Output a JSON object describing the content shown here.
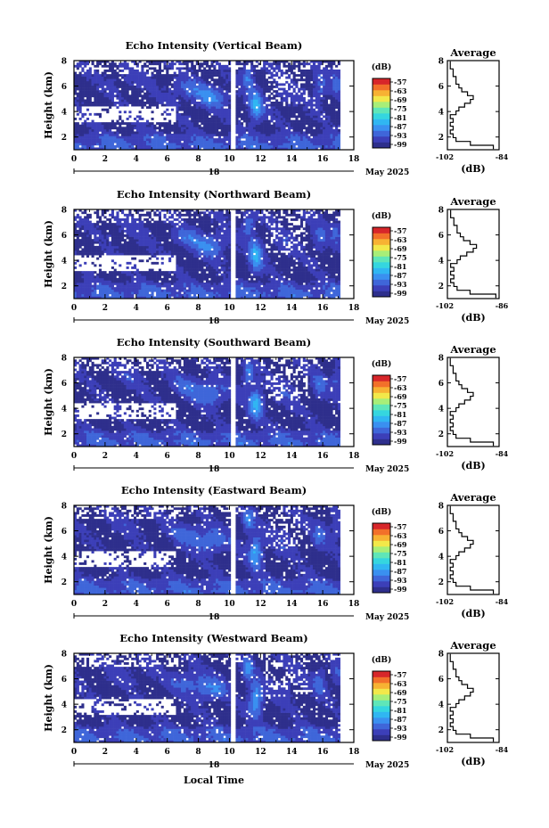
{
  "figure": {
    "xlabel": "Local Time",
    "date_label": "May 2025",
    "colorbar_unit": "(dB)",
    "colorbar_ticks": [
      "-57",
      "-63",
      "-69",
      "-75",
      "-81",
      "-87",
      "-93",
      "-99"
    ],
    "colormap": [
      "#2e2f8c",
      "#3c3fb8",
      "#3f66d9",
      "#3a90f0",
      "#30b6f2",
      "#35d6df",
      "#5fe6b8",
      "#a8ee78",
      "#f2e84a",
      "#f7b233",
      "#f2702a",
      "#d7262a"
    ],
    "background": "#ffffff",
    "missing_color": "#ffffff"
  },
  "chart_data": [
    {
      "type": "heatmap",
      "title": "Echo Intensity (Vertical Beam)",
      "ylabel": "Height (km)",
      "xlim": [
        0,
        18
      ],
      "ylim": [
        1,
        8
      ],
      "xticks": [
        "0",
        "2",
        "4",
        "6",
        "8",
        "10",
        "12",
        "14",
        "16",
        "18"
      ],
      "yticks": [
        "2",
        "4",
        "6",
        "8"
      ],
      "day_label": "18",
      "gap_x": [
        10.1,
        10.4
      ],
      "colorbar_ticks": [
        "-57",
        "-63",
        "-69",
        "-75",
        "-81",
        "-87",
        "-93",
        "-99"
      ],
      "average": {
        "title": "Average",
        "xlabel": "(dB)",
        "xlim": [
          -102,
          -84
        ],
        "xticks": [
          "-102",
          "-84"
        ],
        "yticks": [
          "2",
          "4",
          "6",
          "8"
        ],
        "height": [
          1.2,
          1.5,
          1.8,
          2.1,
          2.4,
          2.7,
          3.0,
          3.3,
          3.6,
          3.9,
          4.2,
          4.5,
          4.8,
          5.1,
          5.4,
          5.7,
          6.0,
          6.3,
          6.6,
          6.9,
          7.2,
          7.5,
          7.8
        ],
        "value": [
          -86,
          -94,
          -99,
          -100,
          -101,
          -100,
          -101,
          -100,
          -101,
          -99,
          -98,
          -96,
          -94,
          -93,
          -95,
          -97,
          -98,
          -99,
          -99,
          -100,
          -100,
          -101,
          -101
        ]
      }
    },
    {
      "type": "heatmap",
      "title": "Echo Intensity (Northward Beam)",
      "ylabel": "Height (km)",
      "xlim": [
        0,
        18
      ],
      "ylim": [
        1,
        8
      ],
      "xticks": [
        "0",
        "2",
        "4",
        "6",
        "8",
        "10",
        "12",
        "14",
        "16",
        "18"
      ],
      "yticks": [
        "2",
        "4",
        "6",
        "8"
      ],
      "day_label": "18",
      "gap_x": [
        10.1,
        10.4
      ],
      "colorbar_ticks": [
        "-57",
        "-63",
        "-69",
        "-75",
        "-81",
        "-87",
        "-93",
        "-99"
      ],
      "average": {
        "title": "Average",
        "xlabel": "(dB)",
        "xlim": [
          -102,
          -86
        ],
        "xticks": [
          "-102",
          "-86"
        ],
        "yticks": [
          "2",
          "4",
          "6",
          "8"
        ],
        "height": [
          1.2,
          1.5,
          1.8,
          2.1,
          2.4,
          2.7,
          3.0,
          3.3,
          3.6,
          3.9,
          4.2,
          4.5,
          4.8,
          5.1,
          5.4,
          5.7,
          6.0,
          6.3,
          6.6,
          6.9,
          7.2,
          7.5,
          7.8
        ],
        "value": [
          -87,
          -95,
          -99,
          -100,
          -101,
          -100,
          -101,
          -100,
          -101,
          -99,
          -98,
          -96,
          -94,
          -93,
          -95,
          -97,
          -98,
          -99,
          -99,
          -100,
          -100,
          -101,
          -101
        ]
      }
    },
    {
      "type": "heatmap",
      "title": "Echo Intensity (Southward Beam)",
      "ylabel": "Height (km)",
      "xlim": [
        0,
        18
      ],
      "ylim": [
        1,
        8
      ],
      "xticks": [
        "0",
        "2",
        "4",
        "6",
        "8",
        "10",
        "12",
        "14",
        "16",
        "18"
      ],
      "yticks": [
        "2",
        "4",
        "6",
        "8"
      ],
      "day_label": "18",
      "gap_x": [
        10.1,
        10.4
      ],
      "colorbar_ticks": [
        "-57",
        "-63",
        "-69",
        "-75",
        "-81",
        "-87",
        "-93",
        "-99"
      ],
      "average": {
        "title": "Average",
        "xlabel": "(dB)",
        "xlim": [
          -102,
          -84
        ],
        "xticks": [
          "-102",
          "-84"
        ],
        "yticks": [
          "2",
          "4",
          "6",
          "8"
        ],
        "height": [
          1.2,
          1.5,
          1.8,
          2.1,
          2.4,
          2.7,
          3.0,
          3.3,
          3.6,
          3.9,
          4.2,
          4.5,
          4.8,
          5.1,
          5.4,
          5.7,
          6.0,
          6.3,
          6.6,
          6.9,
          7.2,
          7.5,
          7.8
        ],
        "value": [
          -86,
          -94,
          -99,
          -100,
          -101,
          -100,
          -101,
          -100,
          -101,
          -99,
          -98,
          -96,
          -94,
          -93,
          -95,
          -97,
          -98,
          -99,
          -99,
          -100,
          -100,
          -101,
          -101
        ]
      }
    },
    {
      "type": "heatmap",
      "title": "Echo Intensity (Eastward Beam)",
      "ylabel": "Height (km)",
      "xlim": [
        0,
        18
      ],
      "ylim": [
        1,
        8
      ],
      "xticks": [
        "0",
        "2",
        "4",
        "6",
        "8",
        "10",
        "12",
        "14",
        "16",
        "18"
      ],
      "yticks": [
        "2",
        "4",
        "6",
        "8"
      ],
      "day_label": "18",
      "gap_x": [
        10.1,
        10.4
      ],
      "colorbar_ticks": [
        "-57",
        "-63",
        "-69",
        "-75",
        "-81",
        "-87",
        "-93",
        "-99"
      ],
      "average": {
        "title": "Average",
        "xlabel": "(dB)",
        "xlim": [
          -102,
          -84
        ],
        "xticks": [
          "-102",
          "-84"
        ],
        "yticks": [
          "2",
          "4",
          "6",
          "8"
        ],
        "height": [
          1.2,
          1.5,
          1.8,
          2.1,
          2.4,
          2.7,
          3.0,
          3.3,
          3.6,
          3.9,
          4.2,
          4.5,
          4.8,
          5.1,
          5.4,
          5.7,
          6.0,
          6.3,
          6.6,
          6.9,
          7.2,
          7.5,
          7.8
        ],
        "value": [
          -86,
          -94,
          -99,
          -100,
          -101,
          -100,
          -101,
          -100,
          -101,
          -99,
          -98,
          -96,
          -94,
          -93,
          -95,
          -97,
          -98,
          -99,
          -99,
          -100,
          -100,
          -101,
          -101
        ]
      }
    },
    {
      "type": "heatmap",
      "title": "Echo Intensity (Westward Beam)",
      "ylabel": "Height (km)",
      "xlim": [
        0,
        18
      ],
      "ylim": [
        1,
        8
      ],
      "xticks": [
        "0",
        "2",
        "4",
        "6",
        "8",
        "10",
        "12",
        "14",
        "16",
        "18"
      ],
      "yticks": [
        "2",
        "4",
        "6",
        "8"
      ],
      "day_label": "18",
      "gap_x": [
        10.1,
        10.4
      ],
      "colorbar_ticks": [
        "-57",
        "-63",
        "-69",
        "-75",
        "-81",
        "-87",
        "-93",
        "-99"
      ],
      "average": {
        "title": "Average",
        "xlabel": "(dB)",
        "xlim": [
          -102,
          -84
        ],
        "xticks": [
          "-102",
          "-84"
        ],
        "yticks": [
          "2",
          "4",
          "6",
          "8"
        ],
        "height": [
          1.2,
          1.5,
          1.8,
          2.1,
          2.4,
          2.7,
          3.0,
          3.3,
          3.6,
          3.9,
          4.2,
          4.5,
          4.8,
          5.1,
          5.4,
          5.7,
          6.0,
          6.3,
          6.6,
          6.9,
          7.2,
          7.5,
          7.8
        ],
        "value": [
          -86,
          -94,
          -99,
          -100,
          -101,
          -100,
          -101,
          -100,
          -101,
          -99,
          -98,
          -96,
          -94,
          -93,
          -95,
          -97,
          -98,
          -99,
          -99,
          -100,
          -100,
          -101,
          -101
        ]
      }
    }
  ]
}
